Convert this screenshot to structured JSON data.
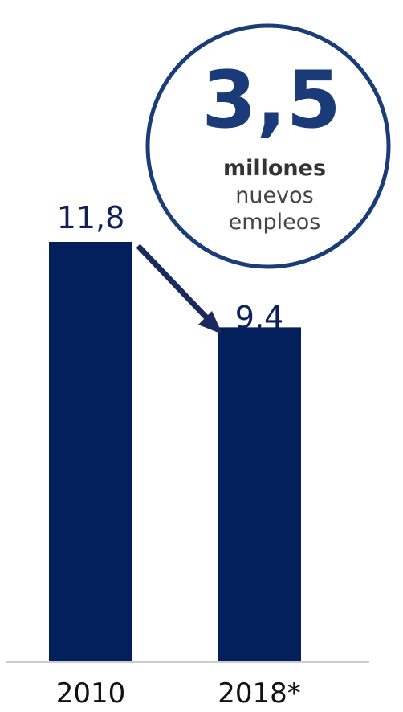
{
  "chart_data": {
    "type": "bar",
    "categories": [
      "2010",
      "2018*"
    ],
    "values": [
      11.8,
      9.4
    ],
    "value_labels": [
      "11,8",
      "9,4"
    ],
    "ylim": [
      0,
      11.8
    ],
    "grid": false,
    "annotation": {
      "number": "3,5",
      "line1": "millones",
      "line2": "nuevos",
      "line3": "empleos"
    }
  },
  "colors": {
    "bar": "#03205c",
    "arrow": "#1a2a5c",
    "circle_stroke": "#1a3d7a",
    "axis": "#cccccc"
  }
}
